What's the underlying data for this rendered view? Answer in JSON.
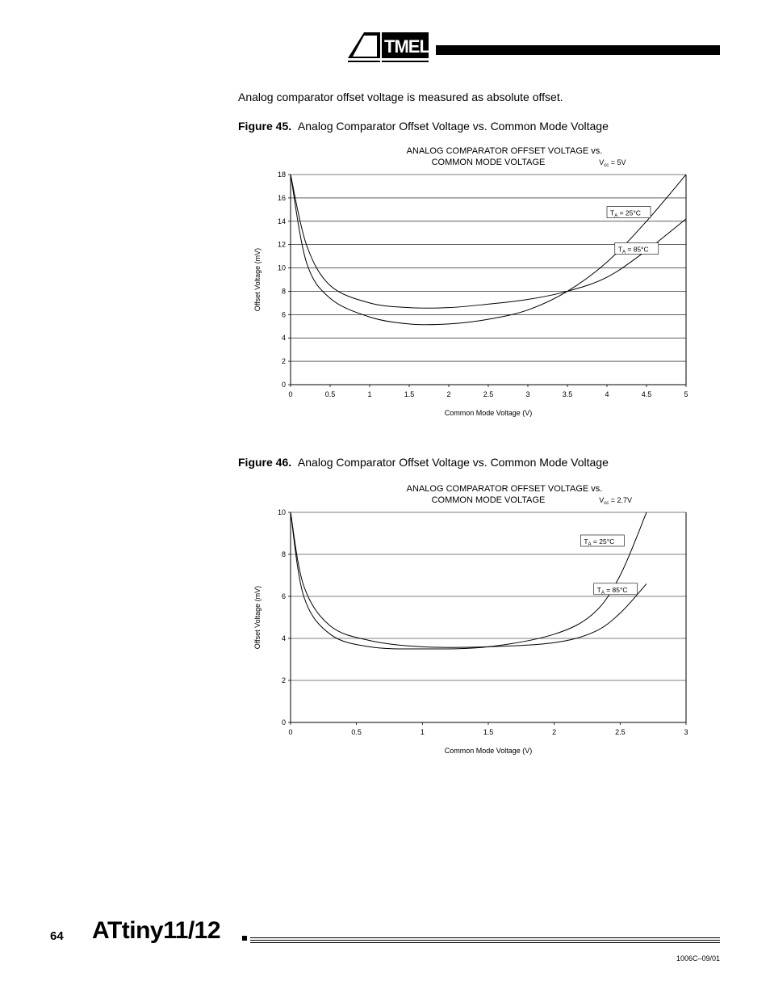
{
  "header": {
    "logo_text": "ATMEL"
  },
  "intro_text": "Analog comparator offset voltage is measured as absolute offset.",
  "figure45": {
    "label": "Figure 45.",
    "caption": "Analog Comparator Offset Voltage vs. Common Mode Voltage"
  },
  "figure46": {
    "label": "Figure 46.",
    "caption": "Analog Comparator Offset Voltage vs. Common Mode Voltage"
  },
  "chart45": {
    "type": "line",
    "title_line1": "ANALOG COMPARATOR OFFSET VOLTAGE vs.",
    "title_line2": "COMMON MODE VOLTAGE",
    "vcc_label": "V",
    "vcc_sub": "cc",
    "vcc_eq": " = 5V",
    "xlabel": "Common Mode Voltage (V)",
    "ylabel": "Offset Voltage (mV)",
    "xlim": [
      0,
      5
    ],
    "ylim": [
      0,
      18
    ],
    "xtick_step": 0.5,
    "ytick_step": 2,
    "xticks": [
      "0",
      "0.5",
      "1",
      "1.5",
      "2",
      "2.5",
      "3",
      "3.5",
      "4",
      "4.5",
      "5"
    ],
    "yticks": [
      "0",
      "2",
      "4",
      "6",
      "8",
      "10",
      "12",
      "14",
      "16",
      "18"
    ],
    "background_color": "#ffffff",
    "grid_color": "#000000",
    "line_color": "#000000",
    "line_width": 1.0,
    "tick_fontsize": 9,
    "title_fontsize": 11,
    "label_fontsize": 9,
    "series": [
      {
        "name": "T_A = 25°C",
        "label_prefix": "T",
        "label_sub": "A",
        "label_suffix": " = 25°C",
        "x": [
          0,
          0.2,
          0.5,
          1.0,
          1.5,
          2.0,
          2.5,
          3.0,
          3.5,
          4.0,
          4.5,
          5.0
        ],
        "y": [
          18,
          10.5,
          7.4,
          5.8,
          5.2,
          5.2,
          5.6,
          6.4,
          8.0,
          10.5,
          14.0,
          18.0
        ]
      },
      {
        "name": "T_A = 85°C",
        "label_prefix": "T",
        "label_sub": "A",
        "label_suffix": " = 85°C",
        "x": [
          0,
          0.2,
          0.5,
          1.0,
          1.5,
          2.0,
          2.5,
          3.0,
          3.5,
          4.0,
          4.5,
          5.0
        ],
        "y": [
          18,
          12.0,
          8.5,
          7.0,
          6.6,
          6.6,
          6.9,
          7.3,
          8.0,
          9.2,
          11.5,
          14.2
        ]
      }
    ],
    "series_label_positions": [
      {
        "x": 4.0,
        "y": 14.5
      },
      {
        "x": 4.1,
        "y": 11.4
      }
    ]
  },
  "chart46": {
    "type": "line",
    "title_line1": "ANALOG COMPARATOR OFFSET VOLTAGE vs.",
    "title_line2": "COMMON MODE VOLTAGE",
    "vcc_label": "V",
    "vcc_sub": "cc",
    "vcc_eq": " = 2.7V",
    "xlabel": "Common Mode Voltage (V)",
    "ylabel": "Offset Voltage (mV)",
    "xlim": [
      0,
      3
    ],
    "ylim": [
      0,
      10
    ],
    "xtick_step": 0.5,
    "ytick_step": 2,
    "xticks": [
      "0",
      "0.5",
      "1",
      "1.5",
      "2",
      "2.5",
      "3"
    ],
    "yticks": [
      "0",
      "2",
      "4",
      "6",
      "8",
      "10"
    ],
    "background_color": "#ffffff",
    "grid_color": "#000000",
    "line_color": "#000000",
    "line_width": 1.0,
    "tick_fontsize": 9,
    "title_fontsize": 11,
    "label_fontsize": 9,
    "series": [
      {
        "name": "T_A = 25°C",
        "label_prefix": "T",
        "label_sub": "A",
        "label_suffix": " = 25°C",
        "x": [
          0,
          0.1,
          0.3,
          0.6,
          1.0,
          1.5,
          2.0,
          2.3,
          2.5,
          2.7
        ],
        "y": [
          10,
          6.0,
          4.2,
          3.6,
          3.5,
          3.6,
          4.2,
          5.2,
          7.0,
          10.0
        ]
      },
      {
        "name": "T_A = 85°C",
        "label_prefix": "T",
        "label_sub": "A",
        "label_suffix": " = 85°C",
        "x": [
          0,
          0.1,
          0.3,
          0.6,
          1.0,
          1.5,
          2.0,
          2.3,
          2.5,
          2.7
        ],
        "y": [
          10,
          6.5,
          4.6,
          3.9,
          3.6,
          3.6,
          3.8,
          4.3,
          5.2,
          6.6
        ]
      }
    ],
    "series_label_positions": [
      {
        "x": 2.2,
        "y": 8.5
      },
      {
        "x": 2.3,
        "y": 6.2
      }
    ]
  },
  "footer": {
    "page_num": "64",
    "title": "ATtiny11/12",
    "doc_id": "1006C–09/01"
  }
}
